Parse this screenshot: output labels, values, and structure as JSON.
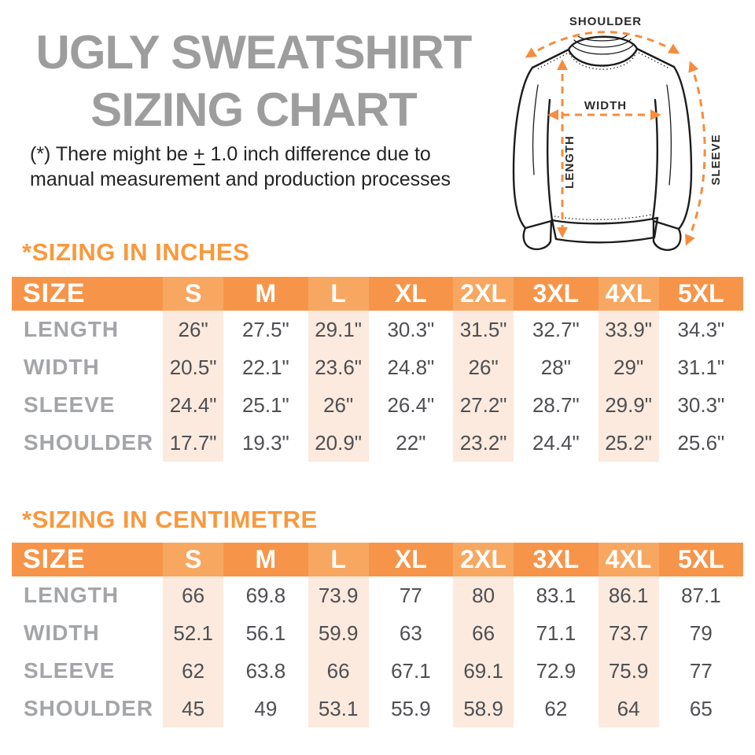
{
  "header": {
    "title_line1": "UGLY SWEATSHIRT",
    "title_line2": "SIZING CHART",
    "disclaimer_prefix": "(*) There might be ",
    "disclaimer_pm": "+",
    "disclaimer_suffix": " 1.0 inch difference due to",
    "disclaimer_line2": "manual measurement and production processes"
  },
  "diagram": {
    "labels": {
      "shoulder": "SHOULDER",
      "width": "WIDTH",
      "length": "LENGTH",
      "sleeve": "SLEEVE"
    }
  },
  "colors": {
    "accent_orange": "#f6954a",
    "accent_orange_light": "#f8a761",
    "stripe_peach": "#fceade",
    "heading_orange": "#f8993d",
    "title_gray": "#9d9d9d",
    "label_gray": "#a3a5a8",
    "value_gray": "#4e4f53",
    "arrow_orange": "#f68c3e"
  },
  "tables": [
    {
      "id": "inches",
      "heading": "*SIZING IN INCHES",
      "size_label": "SIZE",
      "columns": [
        "S",
        "M",
        "L",
        "XL",
        "2XL",
        "3XL",
        "4XL",
        "5XL"
      ],
      "striped_columns": [
        0,
        2,
        4,
        6
      ],
      "rows": [
        {
          "label": "LENGTH",
          "values": [
            "26\"",
            "27.5\"",
            "29.1\"",
            "30.3\"",
            "31.5\"",
            "32.7\"",
            "33.9\"",
            "34.3\""
          ]
        },
        {
          "label": "WIDTH",
          "values": [
            "20.5\"",
            "22.1\"",
            "23.6\"",
            "24.8\"",
            "26\"",
            "28\"",
            "29\"",
            "31.1\""
          ]
        },
        {
          "label": "SLEEVE",
          "values": [
            "24.4\"",
            "25.1\"",
            "26\"",
            "26.4\"",
            "27.2\"",
            "28.7\"",
            "29.9\"",
            "30.3\""
          ]
        },
        {
          "label": "SHOULDER",
          "values": [
            "17.7\"",
            "19.3\"",
            "20.9\"",
            "22\"",
            "23.2\"",
            "24.4\"",
            "25.2\"",
            "25.6\""
          ]
        }
      ]
    },
    {
      "id": "cm",
      "heading": "*SIZING IN CENTIMETRE",
      "size_label": "SIZE",
      "columns": [
        "S",
        "M",
        "L",
        "XL",
        "2XL",
        "3XL",
        "4XL",
        "5XL"
      ],
      "striped_columns": [
        0,
        2,
        4,
        6
      ],
      "rows": [
        {
          "label": "LENGTH",
          "values": [
            "66",
            "69.8",
            "73.9",
            "77",
            "80",
            "83.1",
            "86.1",
            "87.1"
          ]
        },
        {
          "label": "WIDTH",
          "values": [
            "52.1",
            "56.1",
            "59.9",
            "63",
            "66",
            "71.1",
            "73.7",
            "79"
          ]
        },
        {
          "label": "SLEEVE",
          "values": [
            "62",
            "63.8",
            "66",
            "67.1",
            "69.1",
            "72.9",
            "75.9",
            "77"
          ]
        },
        {
          "label": "SHOULDER",
          "values": [
            "45",
            "49",
            "53.1",
            "55.9",
            "58.9",
            "62",
            "64",
            "65"
          ]
        }
      ]
    }
  ]
}
